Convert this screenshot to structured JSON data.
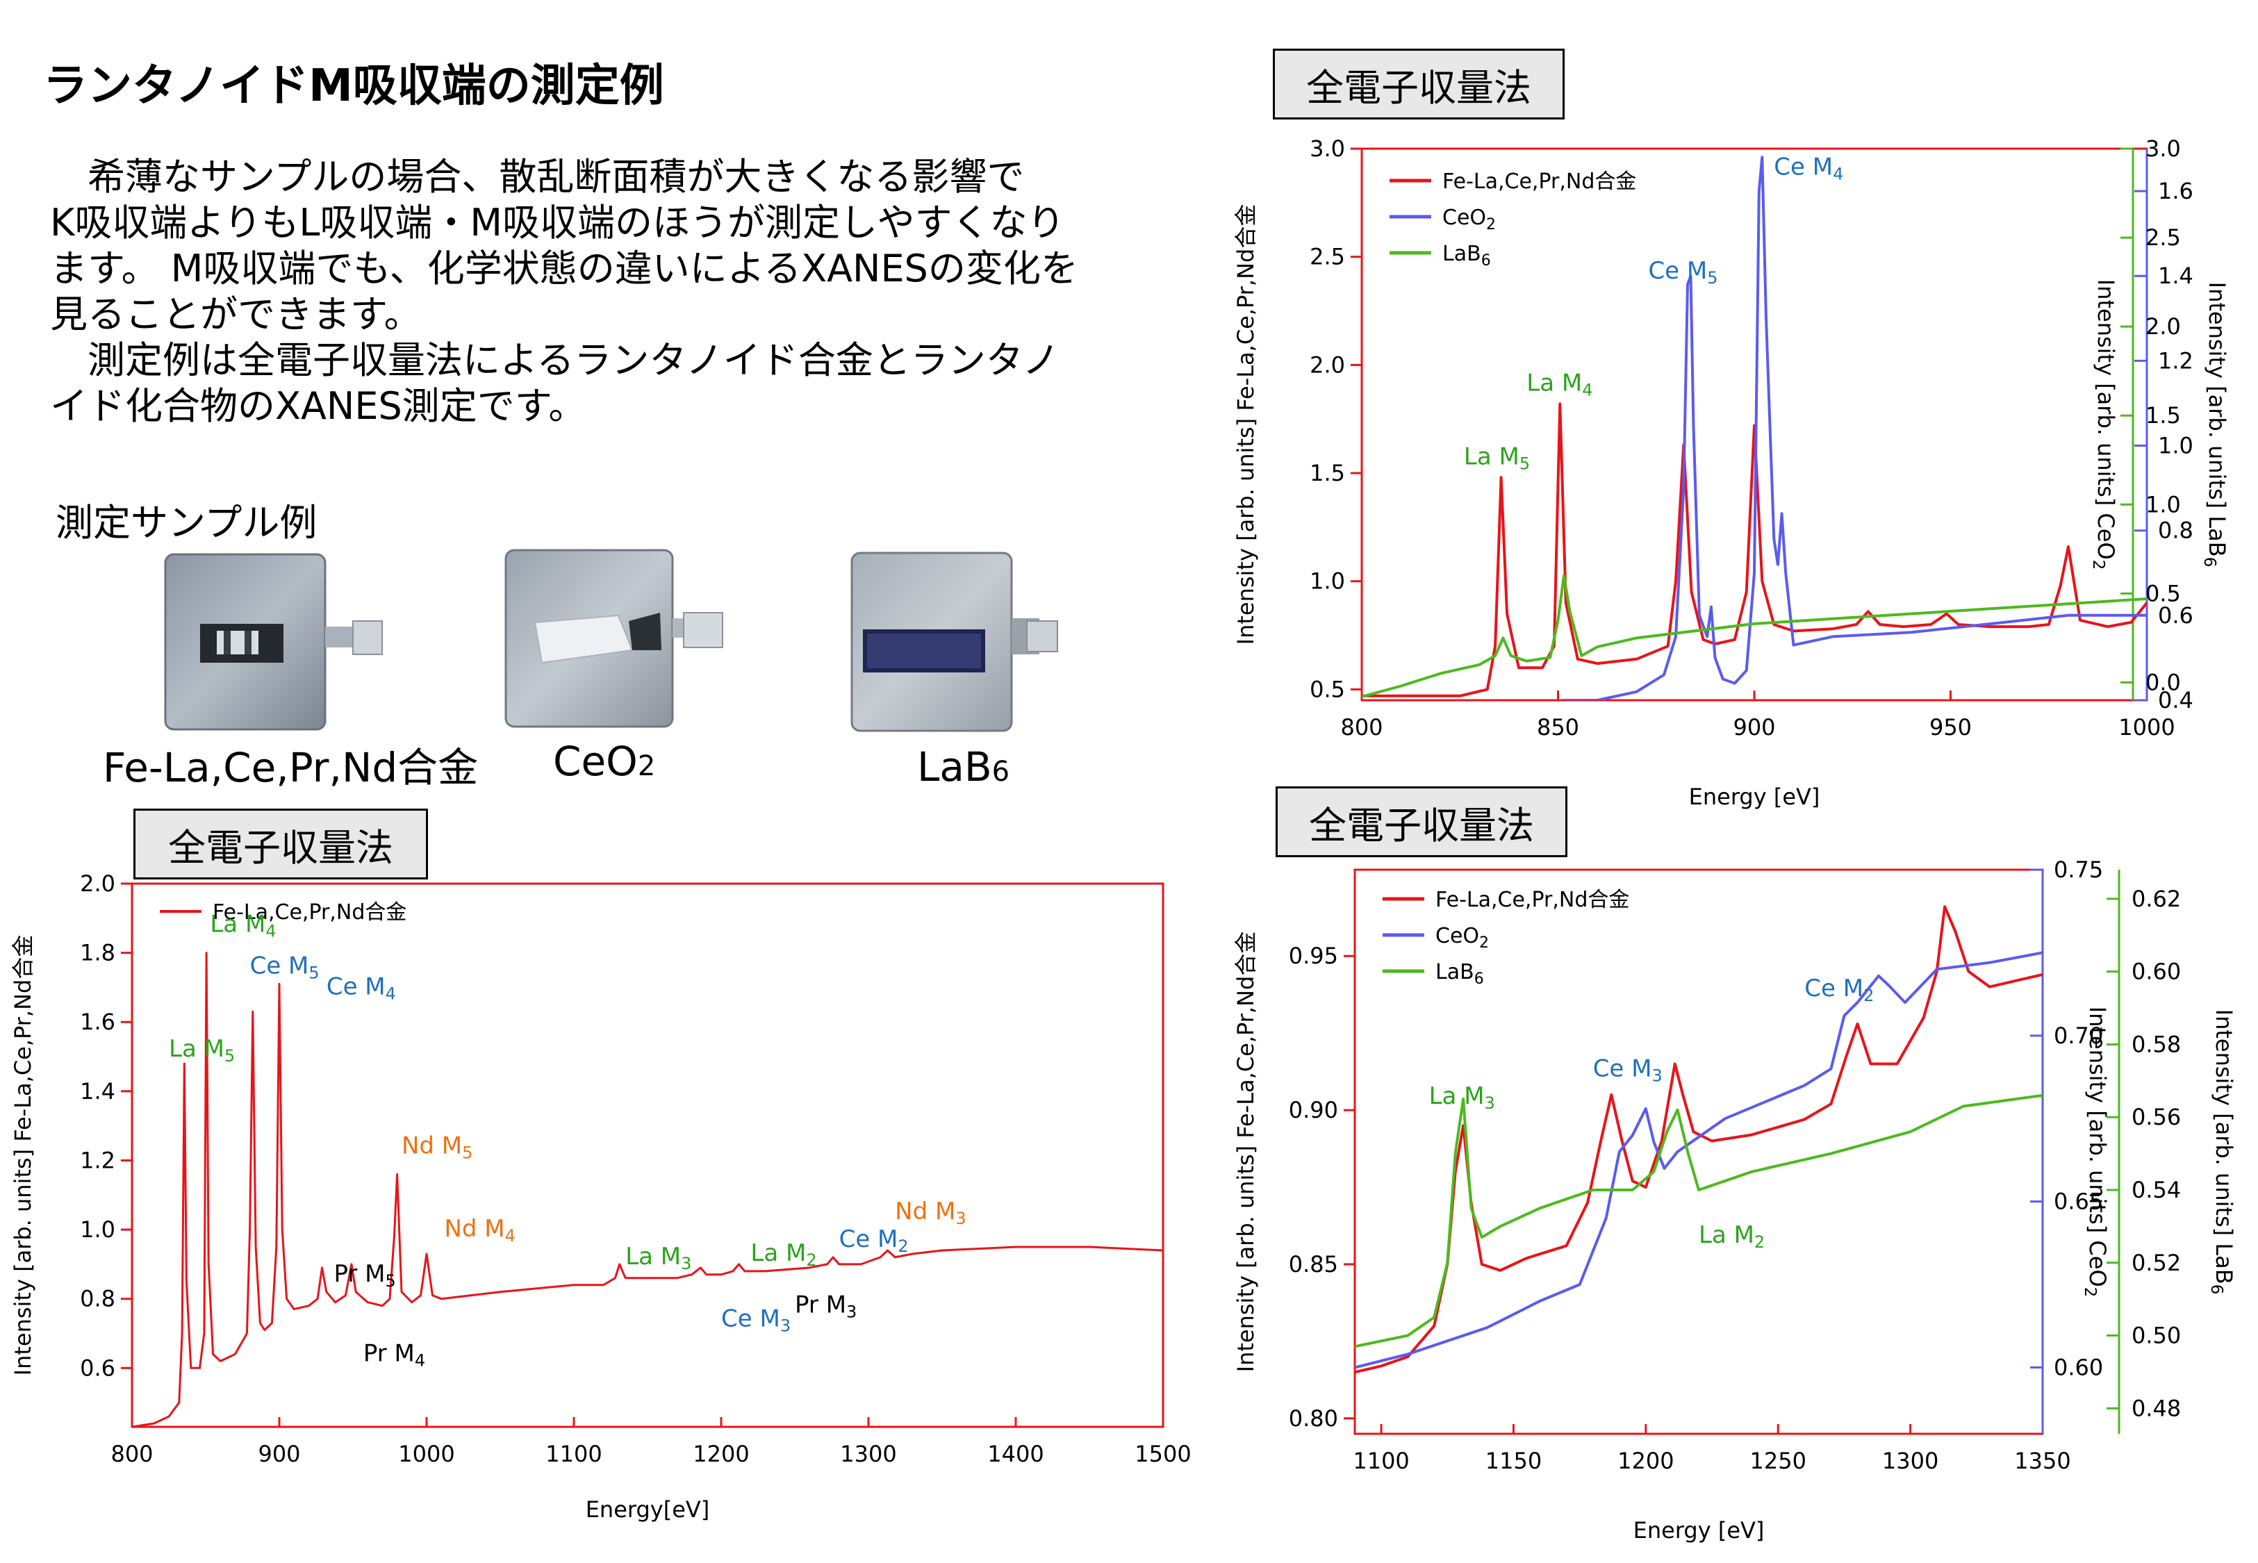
{
  "title": "ランタノイドM吸収端の測定例",
  "intro": {
    "lines": [
      "　希薄なサンプルの場合、散乱断面積が大きくなる影響で",
      "K吸収端よりもL吸収端・M吸収端のほうが測定しやすくなり",
      "ます。 M吸収端でも、化学状態の違いによるXANESの変化を",
      "見ることができます。",
      "　測定例は全電子収量法によるランタノイド合金とランタノ",
      "イド化合物のXANES測定です。"
    ]
  },
  "samples": {
    "heading": "測定サンプル例",
    "items": [
      {
        "label": "Fe-La,Ce,Pr,Nd合金"
      },
      {
        "label": "CeO",
        "sub": "2"
      },
      {
        "label": "LaB",
        "sub": "6"
      }
    ]
  },
  "colors": {
    "alloy": "#e8141a",
    "ceo2": "#5b5bf0",
    "lab6": "#4cba1e",
    "la_label": "#2aa41a",
    "ce_label": "#1e6fc0",
    "nd_label": "#f07010",
    "pr_label": "#000000"
  },
  "chart_data": [
    {
      "type": "line",
      "method_label": "全電子収量法",
      "xlabel": "Energy[eV]",
      "ylabel": "Intensity [arb. units] Fe-La,Ce,Pr,Nd合金",
      "xlim": [
        800,
        1500
      ],
      "ylim": [
        0.43,
        2.0
      ],
      "xticks": [
        800,
        900,
        1000,
        1100,
        1200,
        1300,
        1400,
        1500
      ],
      "yticks": [
        0.6,
        0.8,
        1.0,
        1.2,
        1.4,
        1.6,
        1.8,
        2.0
      ],
      "grid": false,
      "legend_position": "top-left",
      "series": [
        {
          "name": "Fe-La,Ce,Pr,Nd合金",
          "color": "#e8141a",
          "x": [
            800,
            815,
            825,
            832,
            834,
            835.5,
            837,
            840,
            846,
            849,
            850.5,
            852,
            855,
            860,
            870,
            878,
            880,
            882,
            884,
            887,
            890,
            895,
            898,
            900,
            902,
            905,
            910,
            920,
            926,
            929,
            932,
            938,
            945,
            949,
            952,
            960,
            970,
            975,
            978,
            980,
            983,
            990,
            996,
            1000,
            1004,
            1010,
            1050,
            1100,
            1120,
            1128,
            1131,
            1135,
            1150,
            1170,
            1180,
            1186,
            1190,
            1200,
            1208,
            1212,
            1216,
            1230,
            1260,
            1272,
            1276,
            1280,
            1295,
            1308,
            1313,
            1318,
            1330,
            1350,
            1400,
            1450,
            1500
          ],
          "values": [
            0.43,
            0.44,
            0.46,
            0.5,
            0.7,
            1.48,
            0.85,
            0.6,
            0.6,
            0.7,
            1.8,
            0.9,
            0.64,
            0.62,
            0.64,
            0.7,
            1.0,
            1.63,
            0.95,
            0.73,
            0.71,
            0.73,
            0.95,
            1.71,
            1.0,
            0.8,
            0.77,
            0.78,
            0.8,
            0.89,
            0.82,
            0.79,
            0.81,
            0.9,
            0.82,
            0.79,
            0.78,
            0.8,
            0.98,
            1.16,
            0.82,
            0.79,
            0.81,
            0.93,
            0.81,
            0.8,
            0.82,
            0.84,
            0.84,
            0.86,
            0.9,
            0.86,
            0.86,
            0.86,
            0.87,
            0.89,
            0.87,
            0.87,
            0.88,
            0.9,
            0.88,
            0.88,
            0.89,
            0.9,
            0.92,
            0.9,
            0.9,
            0.92,
            0.94,
            0.92,
            0.93,
            0.94,
            0.95,
            0.95,
            0.94
          ]
        }
      ],
      "annotations": [
        {
          "text": "La M",
          "sub": "4",
          "x": 853,
          "y": 1.86,
          "color": "#2aa41a"
        },
        {
          "text": "Ce M",
          "sub": "5",
          "x": 880,
          "y": 1.74,
          "color": "#1e6fc0"
        },
        {
          "text": "Ce M",
          "sub": "4",
          "x": 932,
          "y": 1.68,
          "color": "#1e6fc0"
        },
        {
          "text": "La M",
          "sub": "5",
          "x": 825,
          "y": 1.5,
          "color": "#2aa41a"
        },
        {
          "text": "Nd M",
          "sub": "5",
          "x": 983,
          "y": 1.22,
          "color": "#f07010"
        },
        {
          "text": "Nd M",
          "sub": "4",
          "x": 1012,
          "y": 0.98,
          "color": "#f07010"
        },
        {
          "text": "Pr M",
          "sub": "5",
          "x": 937,
          "y": 0.85,
          "color": "#000000"
        },
        {
          "text": "Pr M",
          "sub": "4",
          "x": 957,
          "y": 0.62,
          "color": "#000000"
        },
        {
          "text": "La M",
          "sub": "3",
          "x": 1135,
          "y": 0.9,
          "color": "#2aa41a"
        },
        {
          "text": "La M",
          "sub": "2",
          "x": 1220,
          "y": 0.91,
          "color": "#2aa41a"
        },
        {
          "text": "Ce M",
          "sub": "3",
          "x": 1200,
          "y": 0.72,
          "color": "#1e6fc0"
        },
        {
          "text": "Ce M",
          "sub": "2",
          "x": 1280,
          "y": 0.95,
          "color": "#1e6fc0"
        },
        {
          "text": "Pr M",
          "sub": "3",
          "x": 1250,
          "y": 0.76,
          "color": "#000000"
        },
        {
          "text": "Nd M",
          "sub": "3",
          "x": 1318,
          "y": 1.03,
          "color": "#f07010"
        }
      ]
    },
    {
      "type": "line",
      "method_label": "全電子収量法",
      "xlabel": "Energy [eV]",
      "ylabel": "Intensity [arb. units] Fe-La,Ce,Pr,Nd合金",
      "ylabel2": "Intensity [arb. units] CeO",
      "ylabel2_sub": "2",
      "ylabel3": "Intensity [arb. units] LaB",
      "ylabel3_sub": "6",
      "xlim": [
        800,
        1000
      ],
      "ylim": [
        0.45,
        3.0
      ],
      "y2lim": [
        0.4,
        1.7
      ],
      "y3lim": [
        -0.1,
        3.0
      ],
      "xticks": [
        800,
        850,
        900,
        950,
        1000
      ],
      "yticks": [
        0.5,
        1.0,
        1.5,
        2.0,
        2.5,
        3.0
      ],
      "y2ticks": [
        0.4,
        0.6,
        0.8,
        1.0,
        1.2,
        1.4,
        1.6
      ],
      "y3ticks": [
        0.0,
        0.5,
        1.0,
        1.5,
        2.0,
        2.5,
        3.0
      ],
      "grid": false,
      "legend_position": "top-left",
      "series": [
        {
          "name": "Fe-La,Ce,Pr,Nd合金",
          "sub": "",
          "color": "#e8141a",
          "axis": "y",
          "x": [
            800,
            815,
            825,
            832,
            834,
            835.5,
            837,
            840,
            846,
            849,
            850.5,
            852,
            855,
            860,
            870,
            878,
            880,
            882,
            884,
            887,
            890,
            895,
            898,
            900,
            902,
            905,
            910,
            920,
            926,
            929,
            932,
            938,
            945,
            949,
            952,
            960,
            970,
            975,
            978,
            980,
            983,
            990,
            996,
            1000
          ],
          "values": [
            0.47,
            0.47,
            0.47,
            0.5,
            0.7,
            1.48,
            0.85,
            0.6,
            0.6,
            0.7,
            1.82,
            0.9,
            0.64,
            0.62,
            0.64,
            0.7,
            1.0,
            1.63,
            0.95,
            0.73,
            0.71,
            0.73,
            0.95,
            1.72,
            1.0,
            0.8,
            0.77,
            0.78,
            0.8,
            0.86,
            0.8,
            0.79,
            0.8,
            0.85,
            0.8,
            0.79,
            0.79,
            0.8,
            0.98,
            1.16,
            0.82,
            0.79,
            0.81,
            0.9
          ]
        },
        {
          "name": "CeO",
          "sub": "2",
          "color": "#5b5bf0",
          "axis": "y2",
          "x": [
            851,
            860,
            870,
            877,
            880,
            882,
            883,
            883.8,
            884.5,
            886,
            888,
            889,
            890,
            892,
            895,
            898,
            900,
            901.2,
            902,
            903,
            905,
            906,
            907,
            908,
            910,
            920,
            940,
            960,
            980,
            1000
          ],
          "values": [
            0.4,
            0.4,
            0.42,
            0.46,
            0.55,
            0.9,
            1.38,
            1.4,
            1.05,
            0.6,
            0.55,
            0.62,
            0.5,
            0.45,
            0.44,
            0.47,
            0.7,
            1.6,
            1.68,
            1.3,
            0.78,
            0.72,
            0.84,
            0.7,
            0.53,
            0.55,
            0.56,
            0.58,
            0.6,
            0.6
          ]
        },
        {
          "name": "LaB",
          "sub": "6",
          "color": "#4cba1e",
          "axis": "y3",
          "x": [
            800,
            810,
            820,
            830,
            834,
            836,
            838,
            842,
            848,
            850,
            851.5,
            853,
            856,
            860,
            870,
            900,
            950,
            1000
          ],
          "values": [
            -0.08,
            -0.02,
            0.05,
            0.1,
            0.15,
            0.25,
            0.15,
            0.12,
            0.14,
            0.35,
            0.6,
            0.4,
            0.15,
            0.2,
            0.25,
            0.33,
            0.4,
            0.47
          ]
        }
      ],
      "annotations": [
        {
          "text": "Ce M",
          "sub": "4",
          "x": 905,
          "y": 2.88,
          "color": "#1e6fc0"
        },
        {
          "text": "Ce M",
          "sub": "5",
          "x": 873,
          "y": 2.4,
          "color": "#1e6fc0"
        },
        {
          "text": "La M",
          "sub": "4",
          "x": 842,
          "y": 1.88,
          "color": "#2aa41a"
        },
        {
          "text": "La M",
          "sub": "5",
          "x": 826,
          "y": 1.54,
          "color": "#2aa41a"
        }
      ]
    },
    {
      "type": "line",
      "method_label": "全電子収量法",
      "xlabel": "Energy [eV]",
      "ylabel": "Intensity [arb. units] Fe-La,Ce,Pr,Nd合金",
      "ylabel2": "Intensity [arb. units] CeO",
      "ylabel2_sub": "2",
      "ylabel3": "Intensity [arb. units] LaB",
      "ylabel3_sub": "6",
      "xlim": [
        1090,
        1350
      ],
      "ylim": [
        0.795,
        0.978
      ],
      "y2lim": [
        0.58,
        0.75
      ],
      "y3lim": [
        0.473,
        0.628
      ],
      "xticks": [
        1100,
        1150,
        1200,
        1250,
        1300,
        1350
      ],
      "yticks": [
        0.8,
        0.85,
        0.9,
        0.95
      ],
      "y2ticks": [
        0.6,
        0.65,
        0.7,
        0.75
      ],
      "y3ticks": [
        0.48,
        0.5,
        0.52,
        0.54,
        0.56,
        0.58,
        0.6,
        0.62
      ],
      "grid": false,
      "legend_position": "top-left",
      "series": [
        {
          "name": "Fe-La,Ce,Pr,Nd合金",
          "sub": "",
          "color": "#e8141a",
          "axis": "y",
          "x": [
            1090,
            1100,
            1110,
            1120,
            1125,
            1128,
            1131,
            1134,
            1138,
            1145,
            1155,
            1170,
            1178,
            1183,
            1187,
            1191,
            1195,
            1200,
            1206,
            1211,
            1214,
            1218,
            1225,
            1240,
            1260,
            1270,
            1276,
            1280,
            1285,
            1295,
            1305,
            1310,
            1313,
            1317,
            1322,
            1330,
            1340,
            1350
          ],
          "values": [
            0.815,
            0.817,
            0.82,
            0.83,
            0.85,
            0.88,
            0.895,
            0.87,
            0.85,
            0.848,
            0.852,
            0.856,
            0.87,
            0.89,
            0.905,
            0.89,
            0.877,
            0.875,
            0.89,
            0.915,
            0.905,
            0.893,
            0.89,
            0.892,
            0.897,
            0.902,
            0.918,
            0.928,
            0.915,
            0.915,
            0.93,
            0.945,
            0.966,
            0.958,
            0.945,
            0.94,
            0.942,
            0.944
          ]
        },
        {
          "name": "CeO",
          "sub": "2",
          "color": "#5b5bf0",
          "axis": "y2",
          "x": [
            1090,
            1110,
            1125,
            1140,
            1160,
            1175,
            1185,
            1190,
            1195,
            1200,
            1203,
            1207,
            1212,
            1230,
            1260,
            1270,
            1275,
            1280,
            1288,
            1292,
            1298,
            1310,
            1330,
            1350
          ],
          "values": [
            0.6,
            0.604,
            0.608,
            0.612,
            0.62,
            0.625,
            0.645,
            0.665,
            0.67,
            0.678,
            0.668,
            0.66,
            0.665,
            0.675,
            0.685,
            0.69,
            0.706,
            0.71,
            0.718,
            0.715,
            0.71,
            0.72,
            0.722,
            0.725
          ]
        },
        {
          "name": "LaB",
          "sub": "6",
          "color": "#4cba1e",
          "axis": "y3",
          "x": [
            1090,
            1110,
            1120,
            1125,
            1128,
            1131,
            1134,
            1138,
            1145,
            1160,
            1180,
            1195,
            1203,
            1208,
            1212,
            1216,
            1220,
            1240,
            1270,
            1300,
            1320,
            1350
          ],
          "values": [
            0.497,
            0.5,
            0.505,
            0.52,
            0.55,
            0.565,
            0.535,
            0.527,
            0.53,
            0.535,
            0.54,
            0.54,
            0.545,
            0.556,
            0.562,
            0.55,
            0.54,
            0.545,
            0.55,
            0.556,
            0.563,
            0.566
          ]
        }
      ],
      "annotations": [
        {
          "text": "Ce M",
          "sub": "2",
          "x": 1260,
          "y": 0.937,
          "color": "#1e6fc0"
        },
        {
          "text": "Ce M",
          "sub": "3",
          "x": 1180,
          "y": 0.911,
          "color": "#1e6fc0"
        },
        {
          "text": "La M",
          "sub": "3",
          "x": 1118,
          "y": 0.902,
          "color": "#2aa41a"
        },
        {
          "text": "La M",
          "sub": "2",
          "x": 1220,
          "y": 0.857,
          "color": "#2aa41a"
        }
      ]
    }
  ]
}
